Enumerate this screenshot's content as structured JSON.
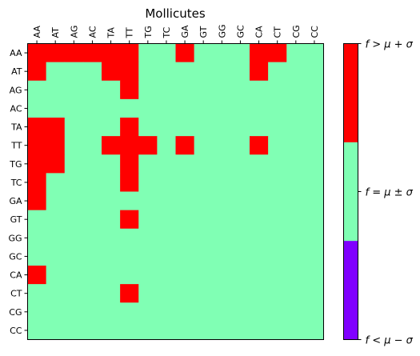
{
  "chart_data": {
    "type": "heatmap",
    "title": "Mollicutes",
    "x_categories": [
      "AA",
      "AT",
      "AG",
      "AC",
      "TA",
      "TT",
      "TG",
      "TC",
      "GA",
      "GT",
      "GG",
      "GC",
      "CA",
      "CT",
      "CG",
      "CC"
    ],
    "y_categories": [
      "AA",
      "AT",
      "AG",
      "AC",
      "TA",
      "TT",
      "TG",
      "TC",
      "GA",
      "GT",
      "GG",
      "GC",
      "CA",
      "CT",
      "CG",
      "CC"
    ],
    "values": [
      [
        1,
        1,
        1,
        1,
        1,
        1,
        0,
        0,
        1,
        0,
        0,
        0,
        1,
        1,
        0,
        0
      ],
      [
        1,
        0,
        0,
        0,
        1,
        1,
        0,
        0,
        0,
        0,
        0,
        0,
        1,
        0,
        0,
        0
      ],
      [
        0,
        0,
        0,
        0,
        0,
        1,
        0,
        0,
        0,
        0,
        0,
        0,
        0,
        0,
        0,
        0
      ],
      [
        0,
        0,
        0,
        0,
        0,
        0,
        0,
        0,
        0,
        0,
        0,
        0,
        0,
        0,
        0,
        0
      ],
      [
        1,
        1,
        0,
        0,
        0,
        1,
        0,
        0,
        0,
        0,
        0,
        0,
        0,
        0,
        0,
        0
      ],
      [
        1,
        1,
        0,
        0,
        1,
        1,
        1,
        0,
        1,
        0,
        0,
        0,
        1,
        0,
        0,
        0
      ],
      [
        1,
        1,
        0,
        0,
        0,
        1,
        0,
        0,
        0,
        0,
        0,
        0,
        0,
        0,
        0,
        0
      ],
      [
        1,
        0,
        0,
        0,
        0,
        1,
        0,
        0,
        0,
        0,
        0,
        0,
        0,
        0,
        0,
        0
      ],
      [
        1,
        0,
        0,
        0,
        0,
        0,
        0,
        0,
        0,
        0,
        0,
        0,
        0,
        0,
        0,
        0
      ],
      [
        0,
        0,
        0,
        0,
        0,
        1,
        0,
        0,
        0,
        0,
        0,
        0,
        0,
        0,
        0,
        0
      ],
      [
        0,
        0,
        0,
        0,
        0,
        0,
        0,
        0,
        0,
        0,
        0,
        0,
        0,
        0,
        0,
        0
      ],
      [
        0,
        0,
        0,
        0,
        0,
        0,
        0,
        0,
        0,
        0,
        0,
        0,
        0,
        0,
        0,
        0
      ],
      [
        1,
        0,
        0,
        0,
        0,
        0,
        0,
        0,
        0,
        0,
        0,
        0,
        0,
        0,
        0,
        0
      ],
      [
        0,
        0,
        0,
        0,
        0,
        1,
        0,
        0,
        0,
        0,
        0,
        0,
        0,
        0,
        0,
        0
      ],
      [
        0,
        0,
        0,
        0,
        0,
        0,
        0,
        0,
        0,
        0,
        0,
        0,
        0,
        0,
        0,
        0
      ],
      [
        0,
        0,
        0,
        0,
        0,
        0,
        0,
        0,
        0,
        0,
        0,
        0,
        0,
        0,
        0,
        0
      ]
    ],
    "value_levels": [
      -1,
      0,
      1
    ],
    "colors": {
      "low": "#8000ff",
      "mid": "#80ffb4",
      "high": "#ff0000"
    },
    "colorbar_labels": [
      "f < μ − σ",
      "f = μ ± σ",
      "f > μ + σ"
    ],
    "x_tick_position": "top",
    "grid": false
  }
}
